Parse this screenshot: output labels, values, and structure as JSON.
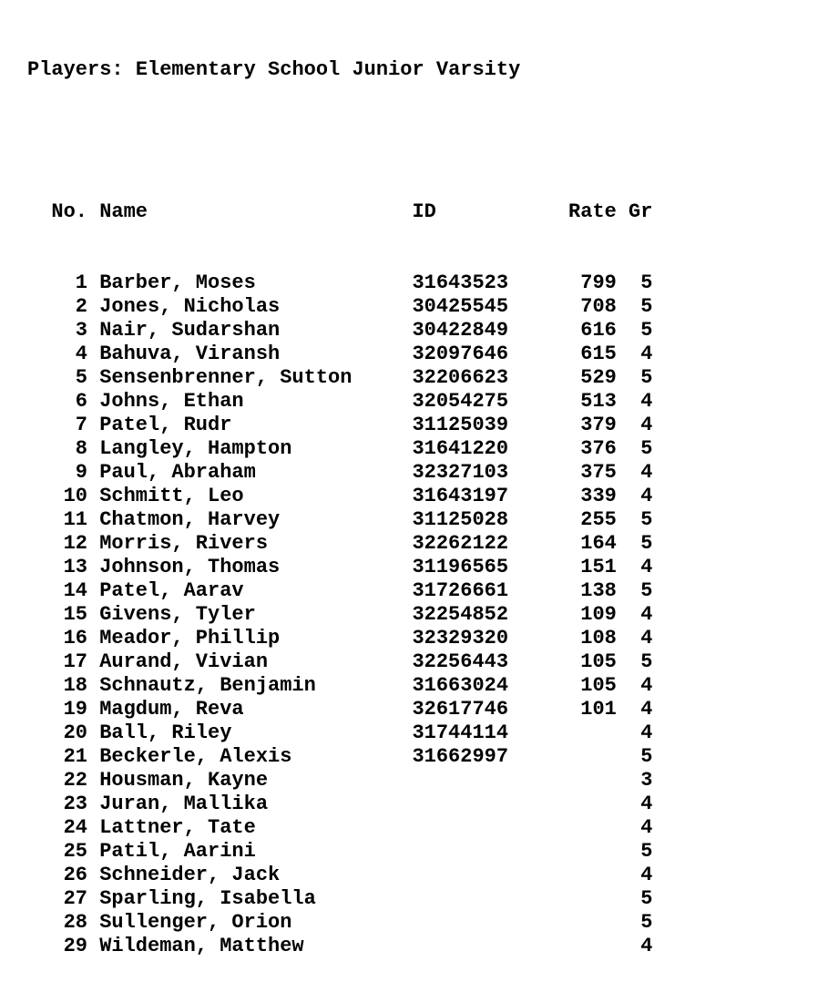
{
  "page": {
    "title": "Players: Elementary School Junior Varsity",
    "text_color": "#000000",
    "background_color": "#ffffff"
  },
  "table": {
    "headers": {
      "no": "No.",
      "name": "Name",
      "id": "ID",
      "rate": "Rate",
      "gr": "Gr"
    },
    "rows": [
      {
        "no": "1",
        "name": "Barber, Moses",
        "id": "31643523",
        "rate": "799",
        "gr": "5"
      },
      {
        "no": "2",
        "name": "Jones, Nicholas",
        "id": "30425545",
        "rate": "708",
        "gr": "5"
      },
      {
        "no": "3",
        "name": "Nair, Sudarshan",
        "id": "30422849",
        "rate": "616",
        "gr": "5"
      },
      {
        "no": "4",
        "name": "Bahuva, Viransh",
        "id": "32097646",
        "rate": "615",
        "gr": "4"
      },
      {
        "no": "5",
        "name": "Sensenbrenner, Sutton",
        "id": "32206623",
        "rate": "529",
        "gr": "5"
      },
      {
        "no": "6",
        "name": "Johns, Ethan",
        "id": "32054275",
        "rate": "513",
        "gr": "4"
      },
      {
        "no": "7",
        "name": "Patel, Rudr",
        "id": "31125039",
        "rate": "379",
        "gr": "4"
      },
      {
        "no": "8",
        "name": "Langley, Hampton",
        "id": "31641220",
        "rate": "376",
        "gr": "5"
      },
      {
        "no": "9",
        "name": "Paul, Abraham",
        "id": "32327103",
        "rate": "375",
        "gr": "4"
      },
      {
        "no": "10",
        "name": "Schmitt, Leo",
        "id": "31643197",
        "rate": "339",
        "gr": "4"
      },
      {
        "no": "11",
        "name": "Chatmon, Harvey",
        "id": "31125028",
        "rate": "255",
        "gr": "5"
      },
      {
        "no": "12",
        "name": "Morris, Rivers",
        "id": "32262122",
        "rate": "164",
        "gr": "5"
      },
      {
        "no": "13",
        "name": "Johnson, Thomas",
        "id": "31196565",
        "rate": "151",
        "gr": "4"
      },
      {
        "no": "14",
        "name": "Patel, Aarav",
        "id": "31726661",
        "rate": "138",
        "gr": "5"
      },
      {
        "no": "15",
        "name": "Givens, Tyler",
        "id": "32254852",
        "rate": "109",
        "gr": "4"
      },
      {
        "no": "16",
        "name": "Meador, Phillip",
        "id": "32329320",
        "rate": "108",
        "gr": "4"
      },
      {
        "no": "17",
        "name": "Aurand, Vivian",
        "id": "32256443",
        "rate": "105",
        "gr": "5"
      },
      {
        "no": "18",
        "name": "Schnautz, Benjamin",
        "id": "31663024",
        "rate": "105",
        "gr": "4"
      },
      {
        "no": "19",
        "name": "Magdum, Reva",
        "id": "32617746",
        "rate": "101",
        "gr": "4"
      },
      {
        "no": "20",
        "name": "Ball, Riley",
        "id": "31744114",
        "rate": "",
        "gr": "4"
      },
      {
        "no": "21",
        "name": "Beckerle, Alexis",
        "id": "31662997",
        "rate": "",
        "gr": "5"
      },
      {
        "no": "22",
        "name": "Housman, Kayne",
        "id": "",
        "rate": "",
        "gr": "3"
      },
      {
        "no": "23",
        "name": "Juran, Mallika",
        "id": "",
        "rate": "",
        "gr": "4"
      },
      {
        "no": "24",
        "name": "Lattner, Tate",
        "id": "",
        "rate": "",
        "gr": "4"
      },
      {
        "no": "25",
        "name": "Patil, Aarini",
        "id": "",
        "rate": "",
        "gr": "5"
      },
      {
        "no": "26",
        "name": "Schneider, Jack",
        "id": "",
        "rate": "",
        "gr": "4"
      },
      {
        "no": "27",
        "name": "Sparling, Isabella",
        "id": "",
        "rate": "",
        "gr": "5"
      },
      {
        "no": "28",
        "name": "Sullenger, Orion",
        "id": "",
        "rate": "",
        "gr": "5"
      },
      {
        "no": "29",
        "name": "Wildeman, Matthew",
        "id": "",
        "rate": "",
        "gr": "4"
      }
    ]
  }
}
